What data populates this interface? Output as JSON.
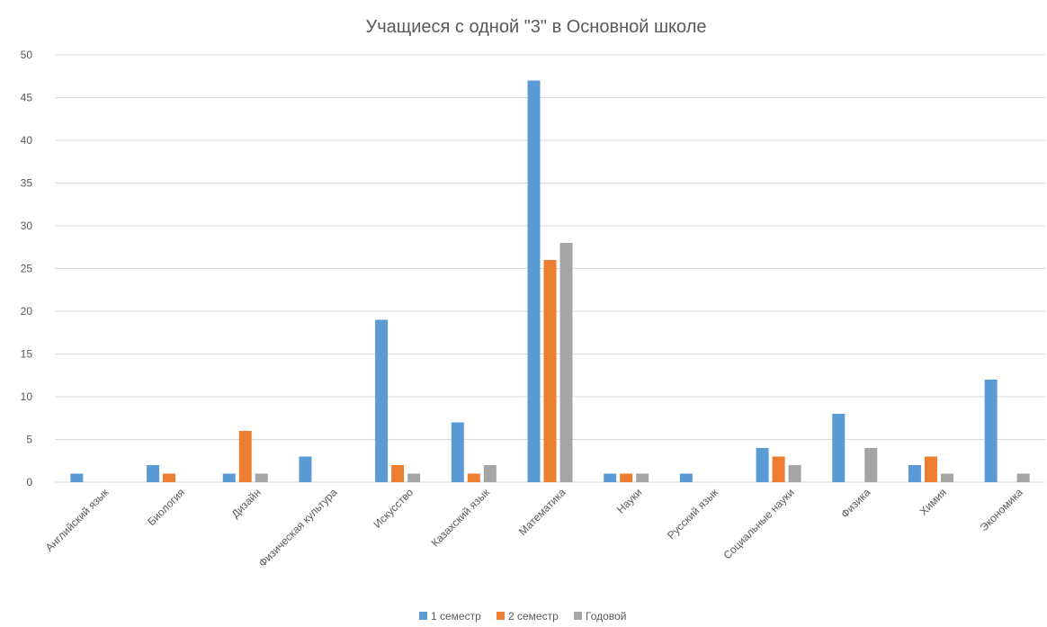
{
  "chart_data": {
    "type": "bar",
    "title": "Учащиеся с одной \"3\" в Основной школе",
    "categories": [
      "Английский язык",
      "Биология",
      "Дизайн",
      "Физическая культура",
      "Искусство",
      "Казахский язык",
      "Математика",
      "Науки",
      "Русский язык",
      "Социальные науки",
      "Физика",
      "Химия",
      "Экономика"
    ],
    "series": [
      {
        "name": "1 семестр",
        "color": "#5b9bd5",
        "values": [
          1,
          2,
          1,
          3,
          19,
          7,
          47,
          1,
          1,
          4,
          8,
          2,
          12
        ]
      },
      {
        "name": "2 семестр",
        "color": "#ed7d31",
        "values": [
          0,
          1,
          6,
          0,
          2,
          1,
          26,
          1,
          0,
          3,
          0,
          3,
          0
        ]
      },
      {
        "name": "Годовой",
        "color": "#a5a5a5",
        "values": [
          0,
          0,
          1,
          0,
          1,
          2,
          28,
          1,
          0,
          2,
          4,
          1,
          1
        ]
      }
    ],
    "ylim": [
      0,
      50
    ],
    "yticks": [
      0,
      5,
      10,
      15,
      20,
      25,
      30,
      35,
      40,
      45,
      50
    ],
    "grid": true,
    "legend": "bottom"
  }
}
